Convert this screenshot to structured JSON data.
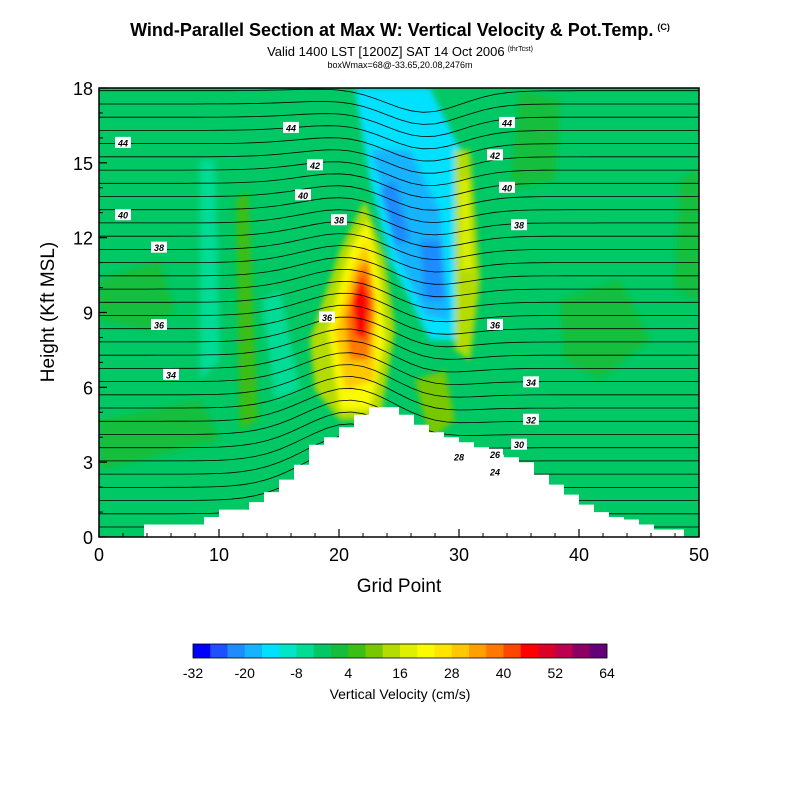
{
  "header": {
    "title": "Wind-Parallel Section at Max W: Vertical Velocity & Pot.Temp.",
    "title_mark": "(C)",
    "subtitle": "Valid 1400 LST [1200Z] SAT 14 Oct 2006",
    "subtitle_mark": "(thrTcst)",
    "boxline": "boxWmax=68@-33.65,20.08,2476m"
  },
  "chart_data": {
    "type": "heatmap",
    "title": "Wind-Parallel Section at Max W: Vertical Velocity & Pot.Temp.",
    "xlabel": "Grid Point",
    "ylabel": "Height (Kft MSL)",
    "xlim": [
      0,
      50
    ],
    "ylim": [
      0,
      18
    ],
    "x_ticks": [
      "0",
      "10",
      "20",
      "30",
      "40",
      "50"
    ],
    "y_ticks": [
      "0",
      "3",
      "6",
      "9",
      "12",
      "15",
      "18"
    ],
    "colorbar": {
      "label": "Vertical Velocity (cm/s)",
      "tick_labels": [
        "-32",
        "-20",
        "-8",
        "4",
        "16",
        "28",
        "40",
        "52",
        "64"
      ],
      "colors": [
        "#0000ff",
        "#1e50ff",
        "#1e8cff",
        "#14b4ff",
        "#00e1ff",
        "#00e6c8",
        "#00dc96",
        "#00c864",
        "#14be3c",
        "#3cbe14",
        "#78c800",
        "#b4dc00",
        "#dcf000",
        "#fafa00",
        "#ffe600",
        "#ffc800",
        "#ffa000",
        "#ff7800",
        "#ff4600",
        "#ff0000",
        "#dc0028",
        "#be0050",
        "#8c0064",
        "#640078"
      ]
    },
    "contour_labels": [
      {
        "value": "44",
        "x": 2,
        "y": 15.8
      },
      {
        "value": "44",
        "x": 16,
        "y": 16.4
      },
      {
        "value": "44",
        "x": 34,
        "y": 16.6
      },
      {
        "value": "42",
        "x": 18,
        "y": 14.9
      },
      {
        "value": "42",
        "x": 33,
        "y": 15.3
      },
      {
        "value": "40",
        "x": 2,
        "y": 12.9
      },
      {
        "value": "40",
        "x": 17,
        "y": 13.7
      },
      {
        "value": "40",
        "x": 34,
        "y": 14.0
      },
      {
        "value": "38",
        "x": 20,
        "y": 12.7
      },
      {
        "value": "38",
        "x": 5,
        "y": 11.6
      },
      {
        "value": "38",
        "x": 35,
        "y": 12.5
      },
      {
        "value": "36",
        "x": 5,
        "y": 8.5
      },
      {
        "value": "36",
        "x": 19,
        "y": 8.8
      },
      {
        "value": "36",
        "x": 33,
        "y": 8.5
      },
      {
        "value": "34",
        "x": 6,
        "y": 6.5
      },
      {
        "value": "34",
        "x": 36,
        "y": 6.2
      },
      {
        "value": "32",
        "x": 36,
        "y": 4.7
      },
      {
        "value": "30",
        "x": 35,
        "y": 3.7
      },
      {
        "value": "28",
        "x": 30,
        "y": 3.2
      },
      {
        "value": "26",
        "x": 33,
        "y": 3.3
      },
      {
        "value": "24",
        "x": 33,
        "y": 2.6
      }
    ],
    "terrain_top_kft": [
      0.0,
      0.0,
      0.0,
      0.5,
      0.5,
      0.5,
      0.5,
      0.8,
      1.1,
      1.1,
      1.4,
      1.8,
      2.3,
      2.9,
      3.7,
      4.0,
      4.4,
      4.9,
      5.2,
      5.2,
      4.9,
      4.5,
      4.2,
      4.0,
      3.8,
      3.6,
      3.3,
      3.2,
      3.0,
      2.5,
      2.1,
      1.7,
      1.3,
      1.0,
      0.8,
      0.7,
      0.5,
      0.3,
      0.3,
      0.0,
      0.0
    ]
  },
  "colors": {
    "background": "#00c864",
    "contour": "#000000",
    "terrain": "#ffffff"
  }
}
